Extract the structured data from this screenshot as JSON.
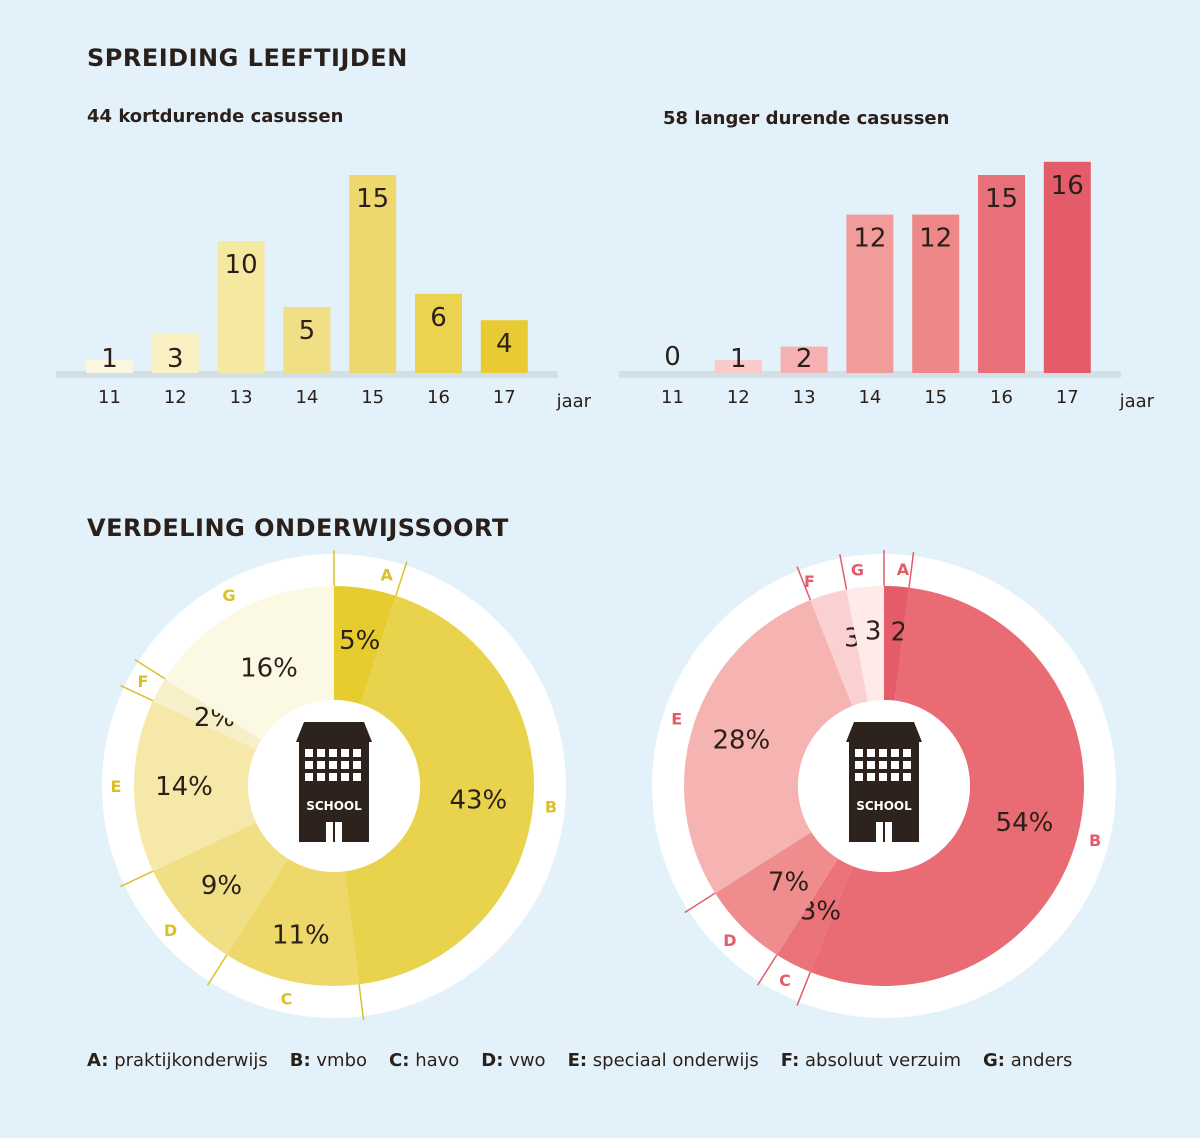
{
  "sections": {
    "ages_title": "SPREIDING LEEFTIJDEN",
    "edu_title": "VERDELING ONDERWIJSSOORT"
  },
  "icon": {
    "name": "school-building-icon",
    "label": "SCHOOL"
  },
  "chart_data": [
    {
      "type": "bar",
      "title": "44 kortdurende casussen",
      "categories": [
        "11",
        "12",
        "13",
        "14",
        "15",
        "16",
        "17"
      ],
      "values": [
        1,
        3,
        10,
        5,
        15,
        6,
        4
      ],
      "xunit": "jaar",
      "ylim": [
        0,
        16
      ],
      "colors": [
        "#fbf7de",
        "#f9f0c4",
        "#f5e8a1",
        "#f1df86",
        "#eed86e",
        "#ebd24f",
        "#e8cb34"
      ]
    },
    {
      "type": "bar",
      "title": "58 langer durende casussen",
      "categories": [
        "11",
        "12",
        "13",
        "14",
        "15",
        "16",
        "17"
      ],
      "values": [
        0,
        1,
        2,
        12,
        12,
        15,
        16
      ],
      "xunit": "jaar",
      "ylim": [
        0,
        16
      ],
      "colors": [
        "#fcd6d6",
        "#f9caca",
        "#f5b1b1",
        "#f19b9b",
        "#ee8888",
        "#e8707a",
        "#e45c6a"
      ]
    },
    {
      "type": "pie",
      "categories": [
        "A",
        "B",
        "C",
        "D",
        "E",
        "F",
        "G"
      ],
      "labels": [
        "5%",
        "43%",
        "11%",
        "9%",
        "14%",
        "2%",
        "16%"
      ],
      "values": [
        5,
        43,
        11,
        9,
        14,
        2,
        16
      ],
      "colors": [
        "#e6cc2e",
        "#ead34c",
        "#eed869",
        "#f1df86",
        "#f5e8a8",
        "#f7efc7",
        "#fbf8e4"
      ],
      "accent": "#d9c12c"
    },
    {
      "type": "pie",
      "categories": [
        "A",
        "B",
        "C",
        "D",
        "E",
        "F",
        "G"
      ],
      "labels": [
        "2%",
        "54%",
        "3%",
        "7%",
        "28%",
        "3",
        "3"
      ],
      "values": [
        2,
        54,
        3,
        7,
        28,
        3,
        3
      ],
      "colors": [
        "#e45c6a",
        "#e96b74",
        "#ea7379",
        "#ef8d8e",
        "#f5b3b1",
        "#fad1d0",
        "#fdeae9"
      ],
      "accent": "#e45c6a"
    }
  ],
  "legend": [
    {
      "key": "A:",
      "text": "praktijkonderwijs"
    },
    {
      "key": "B:",
      "text": "vmbo"
    },
    {
      "key": "C:",
      "text": "havo"
    },
    {
      "key": "D:",
      "text": "vwo"
    },
    {
      "key": "E:",
      "text": "speciaal onderwijs"
    },
    {
      "key": "F:",
      "text": "absoluut verzuim"
    },
    {
      "key": "G:",
      "text": "anders"
    }
  ]
}
